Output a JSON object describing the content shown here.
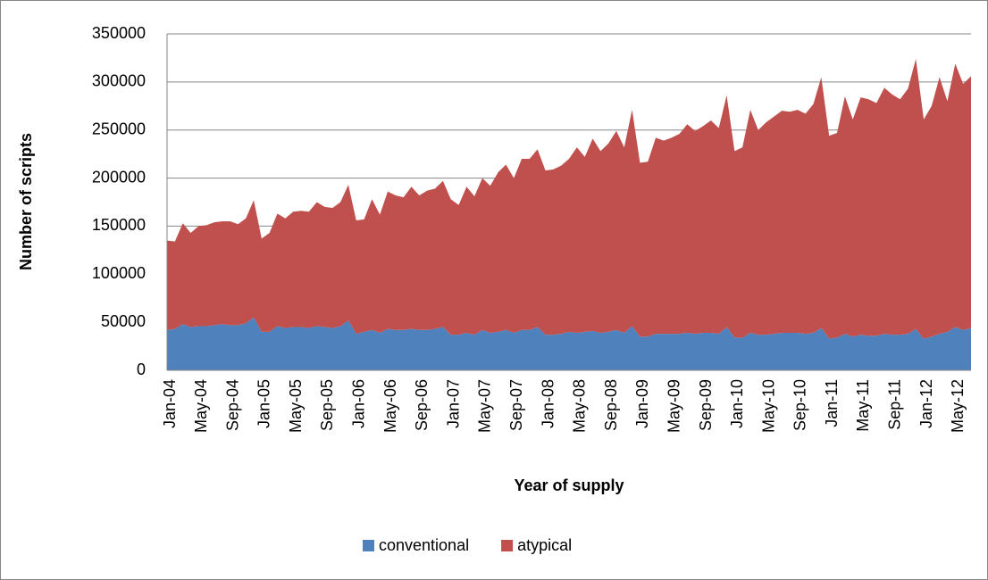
{
  "chart_data": {
    "type": "stacked_area",
    "x_label": "Year of supply",
    "y_label": "Number of scripts",
    "categories": [
      "Jan-04",
      null,
      null,
      null,
      "May-04",
      null,
      null,
      null,
      "Sep-04",
      null,
      null,
      null,
      "Jan-05",
      null,
      null,
      null,
      "May-05",
      null,
      null,
      null,
      "Sep-05",
      null,
      null,
      null,
      "Jan-06",
      null,
      null,
      null,
      "May-06",
      null,
      null,
      null,
      "Sep-06",
      null,
      null,
      null,
      "Jan-07",
      null,
      null,
      null,
      "May-07",
      null,
      null,
      null,
      "Sep-07",
      null,
      null,
      null,
      "Jan-08",
      null,
      null,
      null,
      "May-08",
      null,
      null,
      null,
      "Sep-08",
      null,
      null,
      null,
      "Jan-09",
      null,
      null,
      null,
      "May-09",
      null,
      null,
      null,
      "Sep-09",
      null,
      null,
      null,
      "Jan-10",
      null,
      null,
      null,
      "May-10",
      null,
      null,
      null,
      "Sep-10",
      null,
      null,
      null,
      "Jan-11",
      null,
      null,
      null,
      "May-11",
      null,
      null,
      null,
      "Sep-11",
      null,
      null,
      null,
      "Jan-12",
      null,
      null,
      null,
      "May-12",
      null,
      null
    ],
    "series": [
      {
        "name": "conventional",
        "color": "#4f81bd",
        "values": [
          42000,
          43000,
          48000,
          45000,
          46000,
          46000,
          47000,
          48000,
          47000,
          47000,
          49000,
          55000,
          40000,
          40000,
          46000,
          44000,
          45000,
          45000,
          44000,
          46000,
          45000,
          44000,
          46000,
          52000,
          38000,
          40000,
          42000,
          39000,
          43000,
          42000,
          42000,
          43000,
          42000,
          42000,
          43000,
          45000,
          37000,
          37000,
          39000,
          37000,
          42000,
          39000,
          40000,
          42000,
          39000,
          42000,
          42000,
          45000,
          37000,
          37000,
          38000,
          40000,
          39000,
          40000,
          41000,
          39000,
          40000,
          42000,
          39000,
          46000,
          35000,
          35000,
          38000,
          38000,
          38000,
          38000,
          39000,
          38000,
          39000,
          39000,
          38000,
          45000,
          34000,
          34000,
          39000,
          37000,
          37000,
          38000,
          39000,
          39000,
          39000,
          38000,
          39000,
          44000,
          33000,
          34000,
          38000,
          35000,
          37000,
          36000,
          36000,
          38000,
          37000,
          37000,
          38000,
          43000,
          33000,
          35000,
          38000,
          40000,
          45000,
          42000,
          44000
        ]
      },
      {
        "name": "atypical",
        "color": "#c0504d",
        "values": [
          93000,
          91000,
          105000,
          98000,
          104000,
          105000,
          107000,
          107000,
          108000,
          105000,
          109000,
          122000,
          97000,
          103000,
          117000,
          114000,
          120000,
          121000,
          121000,
          129000,
          125000,
          125000,
          129000,
          141000,
          118000,
          117000,
          136000,
          123000,
          143000,
          140000,
          138000,
          148000,
          140000,
          145000,
          146000,
          152000,
          141000,
          135000,
          152000,
          144000,
          158000,
          153000,
          166000,
          172000,
          161000,
          178000,
          178000,
          185000,
          171000,
          172000,
          175000,
          180000,
          193000,
          182000,
          200000,
          189000,
          196000,
          207000,
          193000,
          225000,
          181000,
          182000,
          204000,
          201000,
          204000,
          208000,
          217000,
          211000,
          215000,
          221000,
          214000,
          241000,
          194000,
          198000,
          232000,
          213000,
          221000,
          226000,
          231000,
          230000,
          232000,
          229000,
          238000,
          261000,
          211000,
          213000,
          247000,
          226000,
          247000,
          246000,
          242000,
          256000,
          250000,
          245000,
          255000,
          281000,
          228000,
          240000,
          267000,
          240000,
          274000,
          256000,
          262000
        ]
      }
    ],
    "ylim": [
      0,
      350000
    ],
    "yticks": [
      0,
      50000,
      100000,
      150000,
      200000,
      250000,
      300000,
      350000
    ],
    "grid": true,
    "legend": "bottom"
  }
}
